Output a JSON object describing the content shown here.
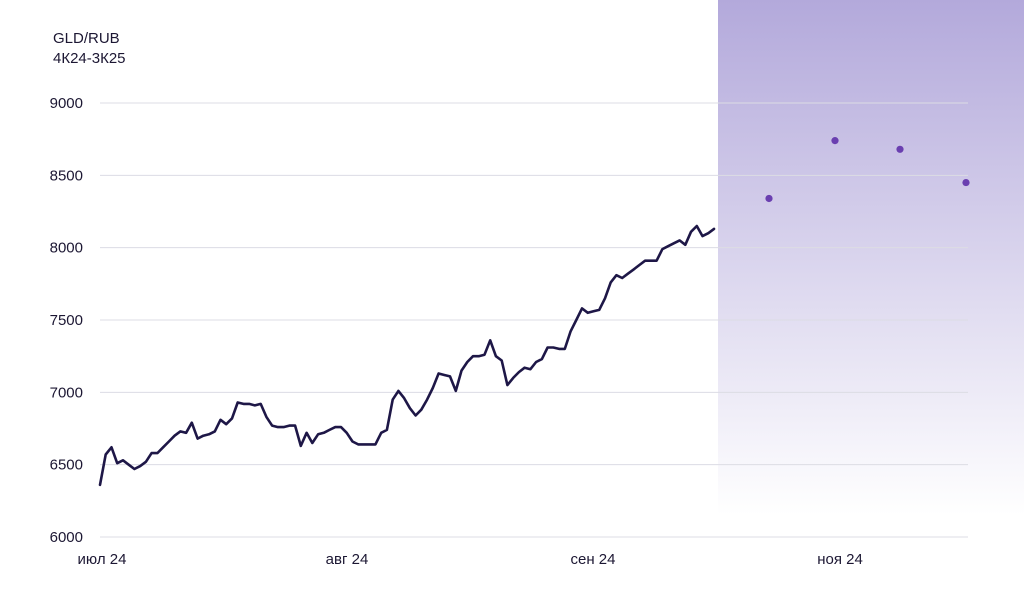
{
  "chart_data": {
    "type": "line",
    "title": "GLD/RUB",
    "subtitle": "4К24-3К25",
    "xlabel": "",
    "ylabel": "",
    "ylim": [
      6000,
      9000
    ],
    "yticks": [
      6000,
      6500,
      7000,
      7500,
      8000,
      8500,
      9000
    ],
    "xticks": [
      "июл 24",
      "авг 24",
      "сен 24",
      "ноя 24"
    ],
    "grid": true,
    "colors": {
      "line": "#1e1747",
      "forecast_dot": "#6a3fb0",
      "forecast_band_top": "#b3a9db",
      "grid": "#dcdce4",
      "text": "#1c1733"
    },
    "series": [
      {
        "values": [
          6360,
          6570,
          6620,
          6510,
          6530,
          6500,
          6470,
          6490,
          6520,
          6580,
          6580,
          6620,
          6660,
          6700,
          6730,
          6720,
          6790,
          6680,
          6700,
          6710,
          6730,
          6810,
          6780,
          6820,
          6930,
          6920,
          6920,
          6910,
          6920,
          6830,
          6770,
          6760,
          6760,
          6770,
          6770,
          6630,
          6720,
          6650,
          6710,
          6720,
          6740,
          6760,
          6760,
          6720,
          6660,
          6640,
          6640,
          6640,
          6640,
          6720,
          6740,
          6950,
          7010,
          6960,
          6890,
          6840,
          6880,
          6950,
          7030,
          7130,
          7120,
          7110,
          7010,
          7150,
          7210,
          7250,
          7250,
          7260,
          7360,
          7250,
          7220,
          7050,
          7100,
          7140,
          7170,
          7160,
          7210,
          7230,
          7310,
          7310,
          7300,
          7300,
          7420,
          7500,
          7580,
          7550,
          7560,
          7570,
          7650,
          7760,
          7810,
          7790,
          7820,
          7850,
          7880,
          7910,
          7910,
          7910,
          7990,
          8010,
          8030,
          8050,
          8020,
          8110,
          8150,
          8080,
          8100,
          8130
        ]
      },
      {
        "type": "scatter",
        "values": [
          8340,
          8740,
          8680,
          8450
        ]
      }
    ]
  }
}
